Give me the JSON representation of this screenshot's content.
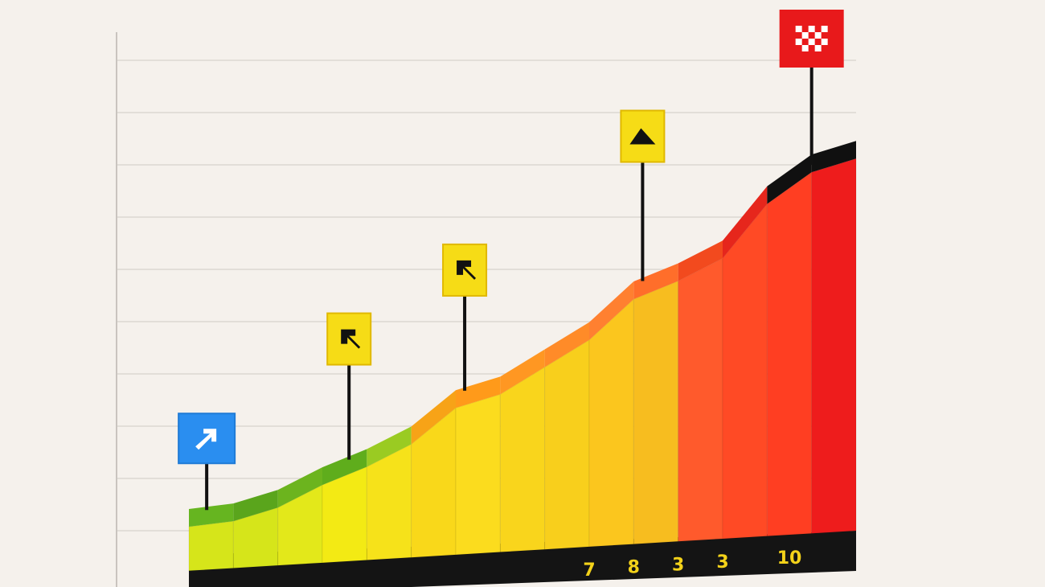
{
  "chart_data": {
    "type": "area",
    "title": "",
    "xlabel": "",
    "ylabel": "",
    "x": [
      1,
      2,
      3,
      4,
      5,
      6,
      7,
      8,
      9,
      10,
      11,
      12,
      13,
      14,
      15
    ],
    "values": [
      0.6,
      0.9,
      1.4,
      1.8,
      2.3,
      3.1,
      3.4,
      4.0,
      4.6,
      5.5,
      5.9,
      6.4,
      7.6,
      8.3,
      8.6
    ],
    "ylim": [
      0,
      11
    ],
    "grid": true,
    "tick_labels": [
      {
        "x": 10,
        "text": "7"
      },
      {
        "x": 11,
        "text": "8"
      },
      {
        "x": 12,
        "text": "3"
      },
      {
        "x": 13,
        "text": "3"
      },
      {
        "x": 14.5,
        "text": "10"
      }
    ],
    "segment_colors": [
      "#d6e51a",
      "#d6e51a",
      "#e3e81a",
      "#f3ea14",
      "#f6e21a",
      "#f9d81a",
      "#fbdc1e",
      "#f9d51c",
      "#f8cf1c",
      "#fbc61e",
      "#f7bd1f",
      "#ff5a2c",
      "#ff4a25",
      "#ff3e22",
      "#ee1c1c"
    ],
    "top_colors": [
      "#66b520",
      "#5aa51c",
      "#6cb41e",
      "#5fad1c",
      "#9acb22",
      "#f7a317",
      "#ff9a1a",
      "#ff9722",
      "#ff8b28",
      "#ff8030",
      "#ff6e2a",
      "#f24a1e",
      "#e6261c",
      "#101010",
      "#101010"
    ],
    "markers": [
      {
        "x": 1.4,
        "icon": "arrow-up-right-icon",
        "color": "#2a8ef0"
      },
      {
        "x": 4.6,
        "icon": "arrow-up-left-icon",
        "color": "#f6dc16"
      },
      {
        "x": 7.2,
        "icon": "arrow-up-left-icon",
        "color": "#f6dc16"
      },
      {
        "x": 11.2,
        "icon": "mountain-icon",
        "color": "#f6dc16"
      },
      {
        "x": 15.0,
        "icon": "checkered-flag-icon",
        "color": "#e8191b"
      }
    ]
  }
}
